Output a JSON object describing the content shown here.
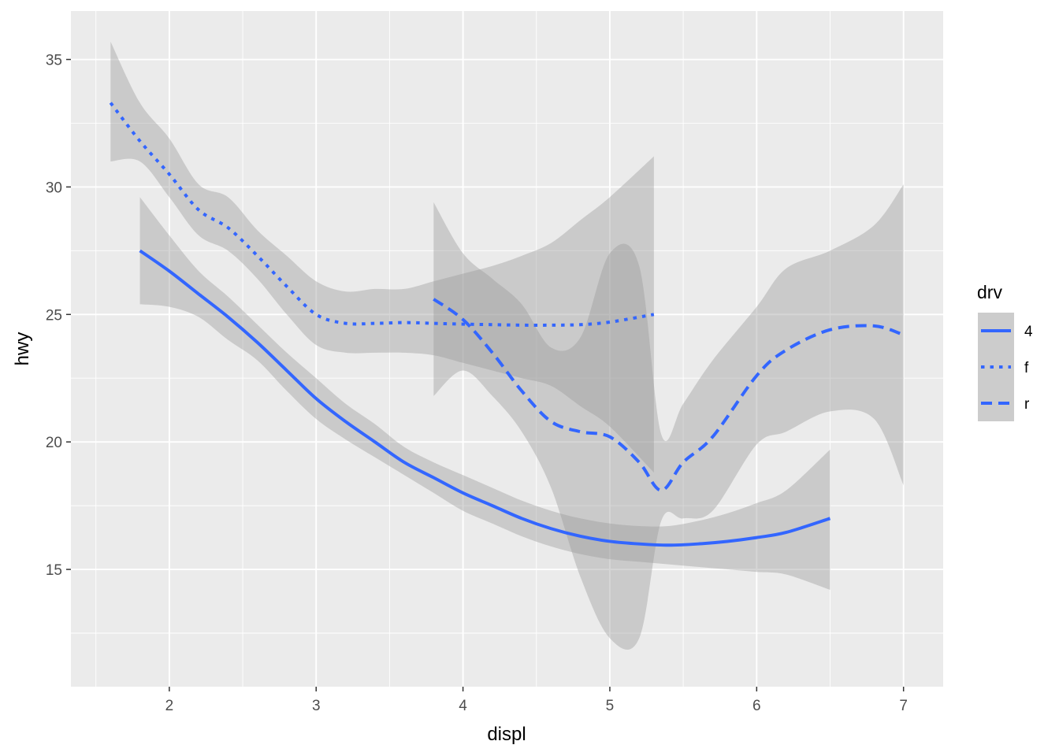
{
  "chart_data": {
    "type": "line",
    "title": "",
    "xlabel": "displ",
    "ylabel": "hwy",
    "xlim": [
      1.33,
      7.27
    ],
    "ylim": [
      10.4,
      36.9
    ],
    "x_ticks": [
      2,
      3,
      4,
      5,
      6,
      7
    ],
    "x_tick_labels": [
      "2",
      "3",
      "4",
      "5",
      "6",
      "7"
    ],
    "y_ticks": [
      15,
      20,
      25,
      30,
      35
    ],
    "y_tick_labels": [
      "15",
      "20",
      "25",
      "30",
      "35"
    ],
    "grid": true,
    "panel_background": "#ebebeb",
    "line_color": "#3366ff",
    "band_color": "#999999",
    "legend": {
      "title": "drv",
      "position": "right",
      "entries": [
        {
          "label": "4",
          "linetype": "solid"
        },
        {
          "label": "f",
          "linetype": "dotted"
        },
        {
          "label": "r",
          "linetype": "dashed"
        }
      ]
    },
    "series": [
      {
        "name": "4",
        "linetype": "solid",
        "x": [
          1.8,
          2.0,
          2.2,
          2.4,
          2.6,
          2.8,
          3.0,
          3.2,
          3.4,
          3.6,
          3.8,
          4.0,
          4.2,
          4.4,
          4.6,
          4.8,
          5.0,
          5.2,
          5.4,
          5.6,
          5.8,
          6.0,
          6.2,
          6.5
        ],
        "y": [
          27.5,
          26.7,
          25.8,
          24.9,
          23.9,
          22.8,
          21.7,
          20.8,
          20.0,
          19.2,
          18.6,
          18.0,
          17.5,
          17.0,
          16.6,
          16.3,
          16.1,
          16.0,
          15.95,
          16.0,
          16.1,
          16.25,
          16.45,
          17.0
        ],
        "ymin": [
          25.4,
          25.3,
          24.9,
          24.0,
          23.2,
          22.0,
          20.9,
          20.1,
          19.4,
          18.7,
          18.0,
          17.3,
          16.8,
          16.3,
          15.9,
          15.6,
          15.4,
          15.3,
          15.2,
          15.1,
          15.0,
          14.9,
          14.8,
          14.2
        ],
        "ymax": [
          29.6,
          28.1,
          26.7,
          25.7,
          24.6,
          23.5,
          22.5,
          21.5,
          20.7,
          19.8,
          19.2,
          18.7,
          18.2,
          17.7,
          17.3,
          17.0,
          16.8,
          16.7,
          16.7,
          16.9,
          17.2,
          17.6,
          18.1,
          19.7
        ]
      },
      {
        "name": "f",
        "linetype": "dotted",
        "x": [
          1.6,
          1.8,
          2.0,
          2.2,
          2.4,
          2.6,
          2.8,
          3.0,
          3.2,
          3.4,
          3.6,
          3.8,
          4.0,
          4.2,
          4.4,
          4.6,
          4.8,
          5.0,
          5.3
        ],
        "y": [
          33.3,
          31.8,
          30.5,
          29.1,
          28.4,
          27.3,
          26.1,
          25.0,
          24.65,
          24.65,
          24.68,
          24.65,
          24.62,
          24.6,
          24.58,
          24.58,
          24.6,
          24.7,
          25.0
        ],
        "ymin": [
          31.0,
          31.0,
          29.6,
          28.1,
          27.5,
          26.4,
          25.0,
          23.8,
          23.5,
          23.5,
          23.5,
          23.4,
          23.1,
          22.8,
          22.5,
          22.2,
          21.4,
          20.6,
          18.8
        ],
        "ymax": [
          35.7,
          33.3,
          31.9,
          30.1,
          29.6,
          28.3,
          27.3,
          26.3,
          25.9,
          26.0,
          26.0,
          26.3,
          26.6,
          26.9,
          27.3,
          27.8,
          28.7,
          29.6,
          31.2
        ]
      },
      {
        "name": "r",
        "linetype": "dashed",
        "x": [
          3.8,
          4.0,
          4.2,
          4.4,
          4.6,
          4.8,
          5.0,
          5.2,
          5.35,
          5.5,
          5.7,
          6.0,
          6.2,
          6.5,
          6.8,
          7.0
        ],
        "y": [
          25.6,
          24.8,
          23.5,
          22.0,
          20.8,
          20.4,
          20.2,
          19.2,
          18.1,
          19.2,
          20.2,
          22.6,
          23.6,
          24.4,
          24.55,
          24.2
        ],
        "ymin": [
          21.8,
          22.8,
          21.8,
          20.4,
          18.2,
          14.7,
          12.3,
          12.3,
          16.9,
          17.0,
          17.3,
          19.9,
          20.4,
          21.2,
          20.9,
          18.3
        ],
        "ymax": [
          29.4,
          27.4,
          26.4,
          25.4,
          23.7,
          24.1,
          27.4,
          26.9,
          20.3,
          21.5,
          23.2,
          25.3,
          26.8,
          27.5,
          28.5,
          30.1
        ]
      }
    ]
  }
}
